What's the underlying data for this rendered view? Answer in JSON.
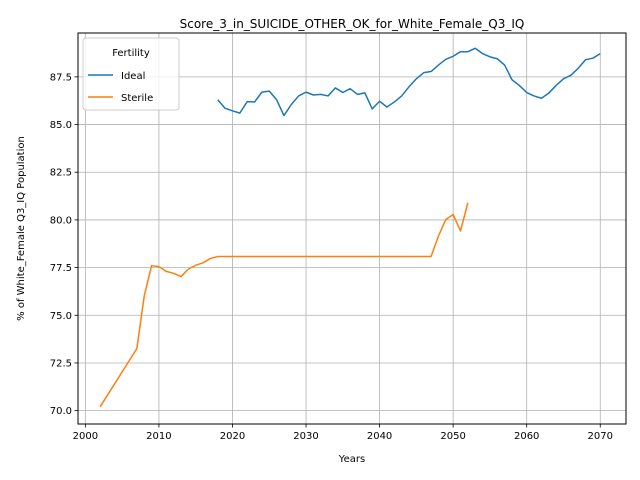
{
  "chart_data": {
    "type": "line",
    "title": "Score_3_in_SUICIDE_OTHER_OK_for_White_Female_Q3_IQ",
    "xlabel": "Years",
    "ylabel": "% of White_Female Q3_IQ Population",
    "xlim": [
      1999,
      2073.5
    ],
    "ylim": [
      69.3,
      89.8
    ],
    "xticks": [
      2000,
      2010,
      2020,
      2030,
      2040,
      2050,
      2060,
      2070
    ],
    "xtick_labels": [
      "2000",
      "2010",
      "2020",
      "2030",
      "2040",
      "2050",
      "2060",
      "2070"
    ],
    "yticks": [
      70.0,
      72.5,
      75.0,
      77.5,
      80.0,
      82.5,
      85.0,
      87.5
    ],
    "ytick_labels": [
      "70.0",
      "72.5",
      "75.0",
      "77.5",
      "80.0",
      "82.5",
      "85.0",
      "87.5"
    ],
    "grid": true,
    "legend": {
      "title": "Fertility",
      "placement": "upper-left"
    },
    "series": [
      {
        "name": "Ideal",
        "color": "#1f77b4",
        "x": [
          2018,
          2019,
          2020,
          2021,
          2022,
          2023,
          2024,
          2025,
          2026,
          2027,
          2028,
          2029,
          2030,
          2031,
          2032,
          2033,
          2034,
          2035,
          2036,
          2037,
          2038,
          2039,
          2040,
          2041,
          2042,
          2043,
          2044,
          2045,
          2046,
          2047,
          2048,
          2049,
          2050,
          2051,
          2052,
          2053,
          2054,
          2055,
          2056,
          2057,
          2058,
          2059,
          2060,
          2061,
          2062,
          2063,
          2064,
          2065,
          2066,
          2067,
          2068,
          2069,
          2070
        ],
        "y": [
          86.3,
          85.85,
          85.72,
          85.6,
          86.2,
          86.18,
          86.7,
          86.75,
          86.3,
          85.47,
          86.05,
          86.5,
          86.7,
          86.55,
          86.58,
          86.5,
          86.92,
          86.68,
          86.88,
          86.58,
          86.66,
          85.82,
          86.22,
          85.92,
          86.18,
          86.5,
          86.98,
          87.4,
          87.72,
          87.78,
          88.12,
          88.42,
          88.58,
          88.82,
          88.82,
          89.0,
          88.72,
          88.55,
          88.45,
          88.12,
          87.35,
          87.05,
          86.68,
          86.5,
          86.38,
          86.65,
          87.05,
          87.4,
          87.58,
          87.95,
          88.4,
          88.48,
          88.72
        ]
      },
      {
        "name": "Sterile",
        "color": "#ff7f0e",
        "x": [
          2002,
          2007,
          2008,
          2009,
          2010,
          2011,
          2012,
          2013,
          2014,
          2015,
          2016,
          2017,
          2018,
          2019,
          2020,
          2025,
          2030,
          2035,
          2040,
          2045,
          2047,
          2048,
          2049,
          2050,
          2051,
          2052
        ],
        "y": [
          70.2,
          73.25,
          76.0,
          77.6,
          77.55,
          77.3,
          77.2,
          77.03,
          77.42,
          77.62,
          77.75,
          77.98,
          78.08,
          78.08,
          78.08,
          78.08,
          78.08,
          78.08,
          78.08,
          78.08,
          78.08,
          79.15,
          80.02,
          80.28,
          79.42,
          80.9
        ]
      }
    ]
  }
}
